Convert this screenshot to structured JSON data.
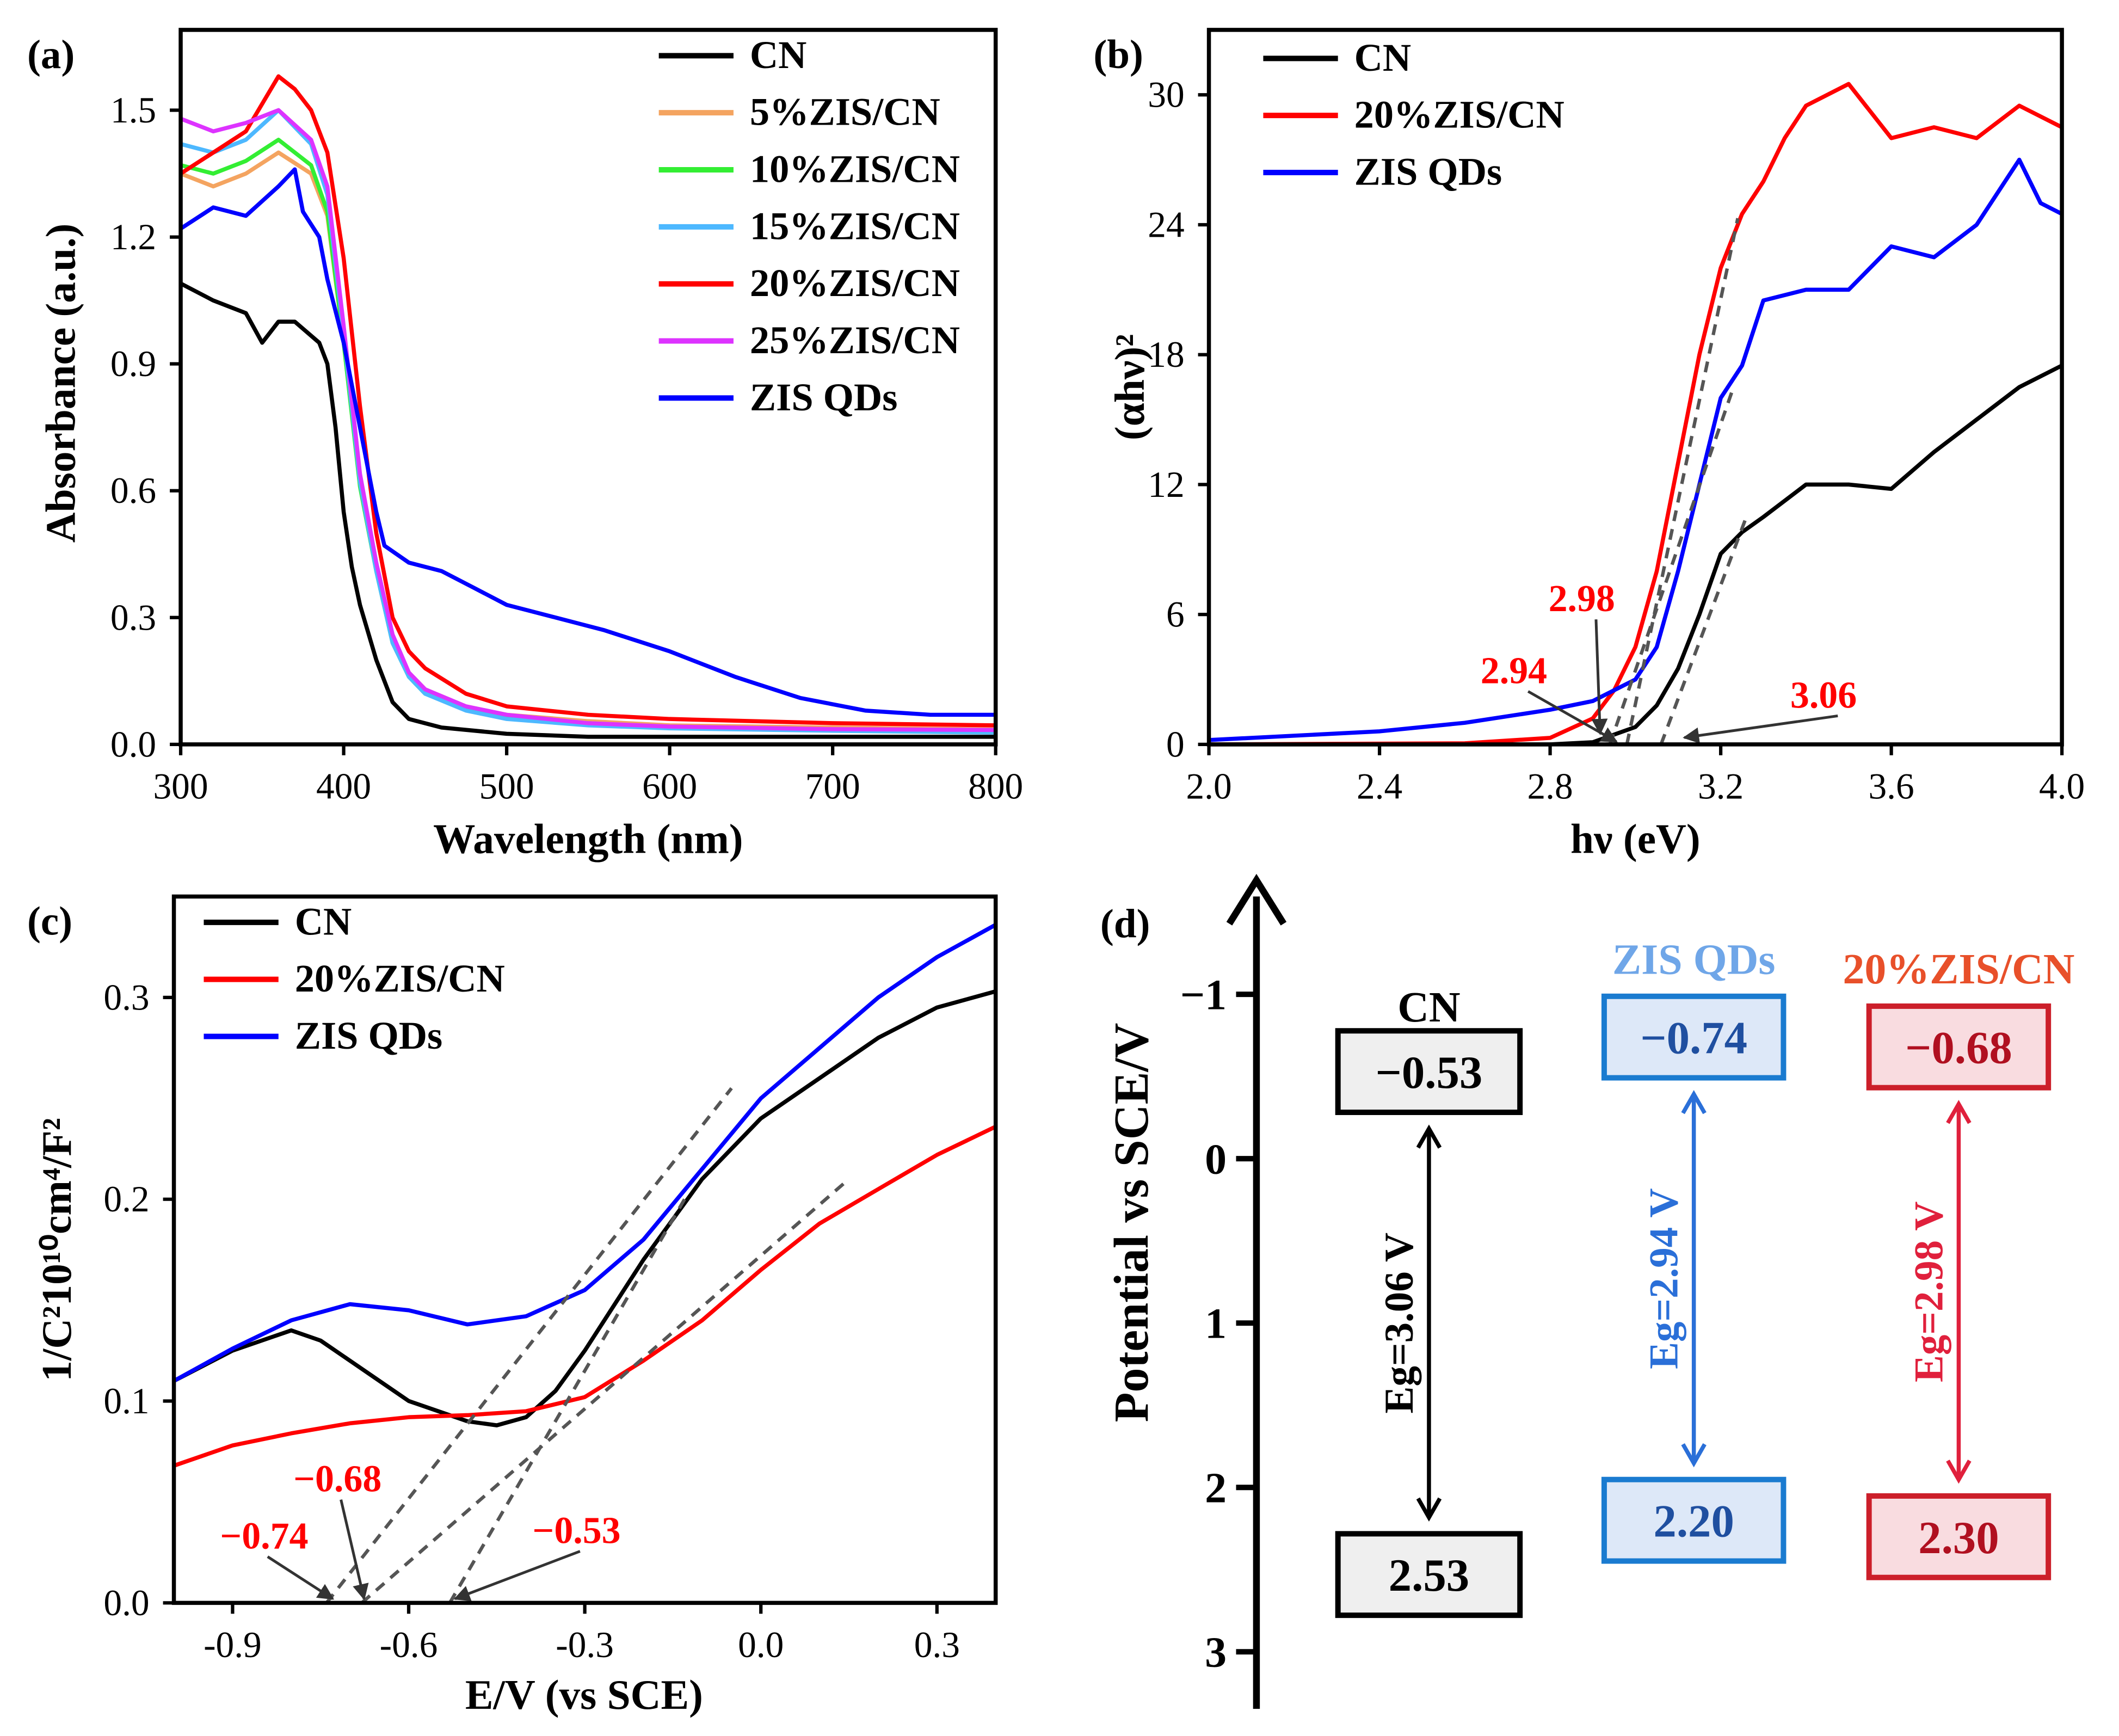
{
  "chart_data": [
    {
      "panel": "(a)",
      "type": "line",
      "xlabel": "Wavelength (nm)",
      "ylabel": "Absorbance (a.u.)",
      "xlim": [
        300,
        800
      ],
      "ylim": [
        0,
        1.69
      ],
      "xticks": [
        300,
        400,
        500,
        600,
        700,
        800
      ],
      "yticks": [
        "0.0",
        "0.3",
        "0.6",
        "0.9",
        "1.2",
        "1.5"
      ],
      "legend": "top-right",
      "series": [
        {
          "name": "CN",
          "color": "#000000",
          "x": [
            300,
            320,
            340,
            350,
            360,
            370,
            385,
            390,
            395,
            400,
            405,
            410,
            420,
            430,
            440,
            460,
            500,
            550,
            600,
            700,
            800
          ],
          "y": [
            1.09,
            1.05,
            1.02,
            0.95,
            1.0,
            1.0,
            0.95,
            0.9,
            0.75,
            0.55,
            0.42,
            0.33,
            0.2,
            0.1,
            0.06,
            0.04,
            0.025,
            0.018,
            0.018,
            0.018,
            0.018
          ]
        },
        {
          "name": "5%ZIS/CN",
          "color": "#f4a460",
          "x": [
            300,
            320,
            340,
            360,
            380,
            390,
            400,
            410,
            420,
            430,
            440,
            450,
            475,
            500,
            550,
            600,
            700,
            800
          ],
          "y": [
            1.35,
            1.32,
            1.35,
            1.4,
            1.35,
            1.25,
            0.95,
            0.62,
            0.42,
            0.25,
            0.17,
            0.13,
            0.09,
            0.07,
            0.055,
            0.045,
            0.04,
            0.035
          ]
        },
        {
          "name": "10%ZIS/CN",
          "color": "#33ee33",
          "x": [
            300,
            320,
            340,
            360,
            380,
            390,
            400,
            410,
            420,
            430,
            440,
            450,
            475,
            500,
            550,
            600,
            700,
            800
          ],
          "y": [
            1.37,
            1.35,
            1.38,
            1.43,
            1.37,
            1.26,
            0.95,
            0.61,
            0.41,
            0.24,
            0.16,
            0.12,
            0.085,
            0.065,
            0.05,
            0.04,
            0.035,
            0.03
          ]
        },
        {
          "name": "15%ZIS/CN",
          "color": "#4db8ff",
          "x": [
            300,
            320,
            340,
            360,
            380,
            390,
            400,
            410,
            420,
            430,
            440,
            450,
            475,
            500,
            550,
            600,
            700,
            800
          ],
          "y": [
            1.42,
            1.4,
            1.43,
            1.5,
            1.42,
            1.3,
            0.97,
            0.62,
            0.41,
            0.24,
            0.16,
            0.12,
            0.08,
            0.06,
            0.045,
            0.038,
            0.032,
            0.028
          ]
        },
        {
          "name": "20%ZIS/CN",
          "color": "#ff0000",
          "x": [
            300,
            320,
            340,
            360,
            370,
            380,
            390,
            400,
            410,
            420,
            430,
            440,
            450,
            475,
            500,
            550,
            600,
            700,
            800
          ],
          "y": [
            1.35,
            1.4,
            1.45,
            1.58,
            1.55,
            1.5,
            1.4,
            1.15,
            0.8,
            0.5,
            0.3,
            0.22,
            0.18,
            0.12,
            0.09,
            0.07,
            0.06,
            0.05,
            0.045
          ]
        },
        {
          "name": "25%ZIS/CN",
          "color": "#dd33ff",
          "x": [
            300,
            320,
            340,
            360,
            380,
            390,
            400,
            410,
            420,
            430,
            440,
            450,
            475,
            500,
            550,
            600,
            700,
            800
          ],
          "y": [
            1.48,
            1.45,
            1.47,
            1.5,
            1.43,
            1.32,
            0.99,
            0.64,
            0.43,
            0.26,
            0.17,
            0.13,
            0.09,
            0.07,
            0.05,
            0.042,
            0.036,
            0.034
          ]
        },
        {
          "name": "ZIS QDs",
          "color": "#0000ff",
          "x": [
            300,
            320,
            340,
            360,
            370,
            375,
            385,
            390,
            400,
            410,
            420,
            425,
            440,
            460,
            480,
            500,
            530,
            560,
            600,
            640,
            680,
            720,
            760,
            800
          ],
          "y": [
            1.22,
            1.27,
            1.25,
            1.32,
            1.36,
            1.26,
            1.2,
            1.1,
            0.95,
            0.75,
            0.55,
            0.47,
            0.43,
            0.41,
            0.37,
            0.33,
            0.3,
            0.27,
            0.22,
            0.16,
            0.11,
            0.08,
            0.07,
            0.07
          ]
        }
      ]
    },
    {
      "panel": "(b)",
      "type": "line",
      "xlabel": "hν (eV)",
      "ylabel": "(αhν)²",
      "xlim": [
        2.0,
        4.0
      ],
      "ylim": [
        0,
        33
      ],
      "xticks": [
        "2.0",
        "2.4",
        "2.8",
        "3.2",
        "3.6",
        "4.0"
      ],
      "yticks": [
        "0",
        "6",
        "12",
        "18",
        "24",
        "30"
      ],
      "legend": "top-left",
      "series": [
        {
          "name": "CN",
          "color": "#000000",
          "x": [
            2.0,
            2.8,
            2.9,
            3.0,
            3.05,
            3.1,
            3.15,
            3.2,
            3.25,
            3.3,
            3.4,
            3.5,
            3.6,
            3.7,
            3.8,
            3.9,
            4.0
          ],
          "y": [
            0,
            0,
            0.1,
            0.8,
            1.8,
            3.5,
            6,
            8.8,
            9.8,
            10.5,
            12,
            12,
            11.8,
            13.5,
            15,
            16.5,
            17.5
          ]
        },
        {
          "name": "20%ZIS/CN",
          "color": "#ff0000",
          "x": [
            2.0,
            2.6,
            2.8,
            2.9,
            2.95,
            3.0,
            3.05,
            3.1,
            3.15,
            3.2,
            3.25,
            3.3,
            3.35,
            3.4,
            3.5,
            3.6,
            3.7,
            3.8,
            3.9,
            4.0
          ],
          "y": [
            0,
            0.05,
            0.3,
            1.2,
            2.5,
            4.5,
            8,
            13,
            18,
            22,
            24.5,
            26,
            28,
            29.5,
            30.5,
            28,
            28.5,
            28,
            29.5,
            28.5
          ]
        },
        {
          "name": "ZIS QDs",
          "color": "#0000ff",
          "x": [
            2.0,
            2.4,
            2.6,
            2.8,
            2.9,
            3.0,
            3.05,
            3.1,
            3.15,
            3.2,
            3.25,
            3.3,
            3.4,
            3.5,
            3.6,
            3.7,
            3.8,
            3.9,
            3.95,
            4.0
          ],
          "y": [
            0.2,
            0.6,
            1.0,
            1.6,
            2.0,
            3.0,
            4.5,
            8,
            12,
            16,
            17.5,
            20.5,
            21,
            21,
            23,
            22.5,
            24,
            27,
            25,
            24.5
          ]
        }
      ],
      "tangents": [
        {
          "x": [
            2.98,
            3.24
          ],
          "y": [
            0,
            24.3
          ]
        },
        {
          "x": [
            2.94,
            3.23
          ],
          "y": [
            0,
            16.5
          ]
        },
        {
          "x": [
            3.06,
            3.26
          ],
          "y": [
            0,
            10.5
          ]
        }
      ],
      "annotations": [
        {
          "text": "2.98",
          "value": 2.98
        },
        {
          "text": "2.94",
          "value": 2.94
        },
        {
          "text": "3.06",
          "value": 3.06
        }
      ]
    },
    {
      "panel": "(c)",
      "type": "line",
      "xlabel": "E/V (vs SCE)",
      "ylabel": "1/C²10¹⁰cm⁴/F²",
      "xlim": [
        -1.0,
        0.4
      ],
      "ylim": [
        0,
        0.35
      ],
      "xticks": [
        "-0.9",
        "-0.6",
        "-0.3",
        "0.0",
        "0.3"
      ],
      "yticks": [
        "0.0",
        "0.1",
        "0.2",
        "0.3"
      ],
      "legend": "top-left",
      "series": [
        {
          "name": "CN",
          "color": "#000000",
          "x": [
            -1.0,
            -0.9,
            -0.8,
            -0.75,
            -0.7,
            -0.6,
            -0.5,
            -0.45,
            -0.4,
            -0.35,
            -0.3,
            -0.2,
            -0.1,
            0.0,
            0.1,
            0.2,
            0.3,
            0.4
          ],
          "y": [
            0.11,
            0.125,
            0.135,
            0.13,
            0.12,
            0.1,
            0.09,
            0.088,
            0.092,
            0.105,
            0.125,
            0.17,
            0.21,
            0.24,
            0.26,
            0.28,
            0.295,
            0.303
          ]
        },
        {
          "name": "20%ZIS/CN",
          "color": "#ff0000",
          "x": [
            -1.0,
            -0.9,
            -0.8,
            -0.7,
            -0.6,
            -0.5,
            -0.4,
            -0.3,
            -0.2,
            -0.1,
            0.0,
            0.1,
            0.2,
            0.3,
            0.4
          ],
          "y": [
            0.068,
            0.078,
            0.084,
            0.089,
            0.092,
            0.093,
            0.095,
            0.102,
            0.12,
            0.14,
            0.165,
            0.188,
            0.205,
            0.222,
            0.236
          ]
        },
        {
          "name": "ZIS QDs",
          "color": "#0000ff",
          "x": [
            -1.0,
            -0.9,
            -0.8,
            -0.7,
            -0.6,
            -0.5,
            -0.4,
            -0.3,
            -0.2,
            -0.1,
            0.0,
            0.1,
            0.2,
            0.3,
            0.4
          ],
          "y": [
            0.11,
            0.126,
            0.14,
            0.148,
            0.145,
            0.138,
            0.142,
            0.155,
            0.18,
            0.215,
            0.25,
            0.275,
            0.3,
            0.32,
            0.336
          ]
        }
      ],
      "tangents": [
        {
          "x": [
            -0.74,
            -0.05
          ],
          "y": [
            0,
            0.255
          ]
        },
        {
          "x": [
            -0.68,
            0.15
          ],
          "y": [
            0,
            0.21
          ]
        },
        {
          "x": [
            -0.53,
            -0.13
          ],
          "y": [
            0,
            0.2
          ]
        }
      ],
      "annotations": [
        {
          "text": "−0.74",
          "value": -0.74
        },
        {
          "text": "−0.68",
          "value": -0.68
        },
        {
          "text": "−0.53",
          "value": -0.53
        }
      ]
    }
  ],
  "band_diagram": {
    "panel": "(d)",
    "ylabel": "Potential vs SCE/V",
    "yticks": [
      "−1",
      "0",
      "1",
      "2",
      "3"
    ],
    "materials": [
      {
        "name": "CN",
        "cb": "−0.53",
        "vb": "2.53",
        "cb_value": -0.53,
        "vb_value": 2.53,
        "eg": "Eg=3.06 V",
        "title_color": "#000000",
        "border": "#000000",
        "fill": "#efefef",
        "text_color": "#000000",
        "arrow_color": "#000000"
      },
      {
        "name": "ZIS QDs",
        "cb": "−0.74",
        "vb": "2.20",
        "cb_value": -0.74,
        "vb_value": 2.2,
        "eg": "Eg=2.94 V",
        "title_color": "#6fa6e8",
        "border": "#1a7bd0",
        "fill": "#dde8f8",
        "text_color": "#1f4fa0",
        "arrow_color": "#2a6fd8"
      },
      {
        "name": "20%ZIS/CN",
        "cb": "−0.68",
        "vb": "2.30",
        "cb_value": -0.68,
        "vb_value": 2.3,
        "eg": "Eg=2.98 V",
        "title_color": "#e8502a",
        "border": "#cc1f2a",
        "fill": "#f9dce0",
        "text_color": "#b01020",
        "arrow_color": "#e0203c"
      }
    ]
  }
}
